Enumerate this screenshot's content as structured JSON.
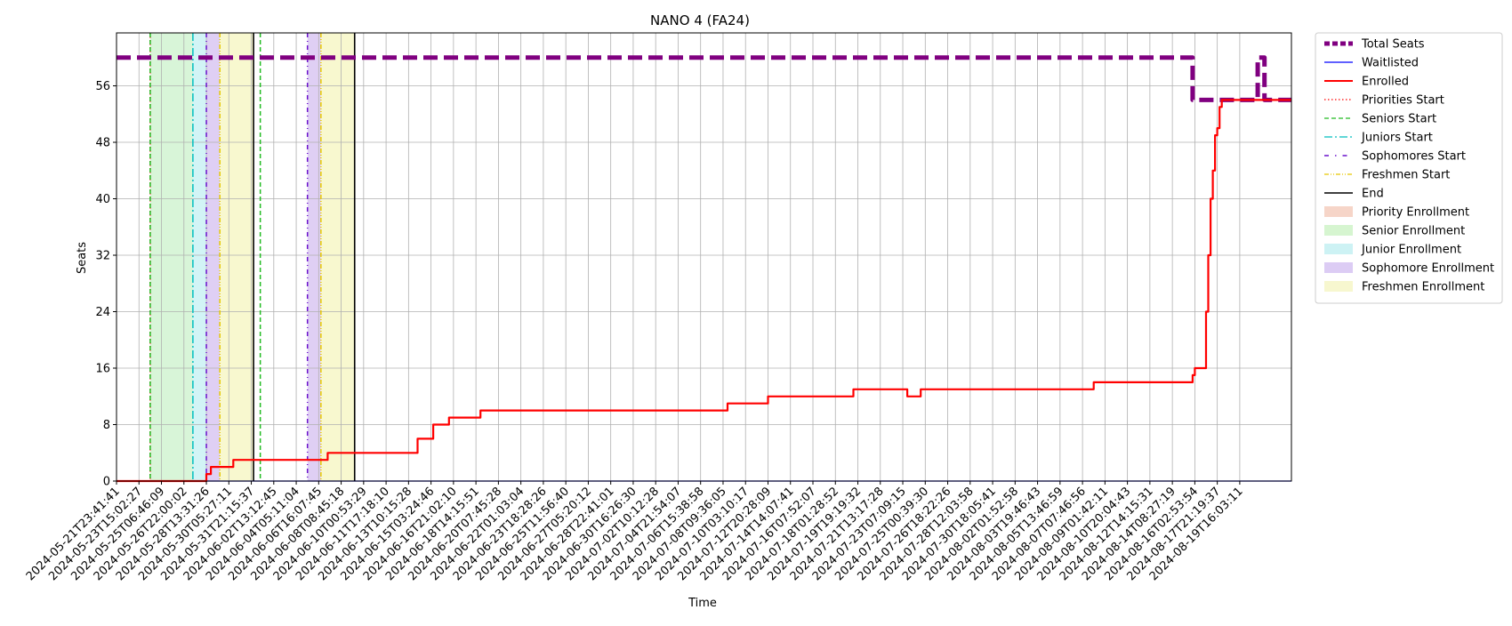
{
  "chart_data": {
    "type": "line",
    "title": "NANO 4 (FA24)",
    "xlabel": "Time",
    "ylabel": "Seats",
    "xlim": [
      0,
      52.3
    ],
    "ylim": [
      0,
      63.5
    ],
    "grid": true,
    "legend_position": "outside-top-right",
    "x_tick_labels": [
      "2024-05-21T23:41:41",
      "2024-05-23T15:02:27",
      "2024-05-25T06:46:09",
      "2024-05-26T22:00:02",
      "2024-05-28T13:31:26",
      "2024-05-30T05:27:11",
      "2024-05-31T21:15:37",
      "2024-06-02T13:12:45",
      "2024-06-04T05:11:04",
      "2024-06-06T16:07:45",
      "2024-06-08T08:45:18",
      "2024-06-10T00:53:29",
      "2024-06-11T17:18:10",
      "2024-06-13T10:15:28",
      "2024-06-15T03:24:46",
      "2024-06-16T21:02:10",
      "2024-06-18T14:15:51",
      "2024-06-20T07:45:28",
      "2024-06-22T01:03:04",
      "2024-06-23T18:28:26",
      "2024-06-25T11:56:40",
      "2024-06-27T05:20:12",
      "2024-06-28T22:41:01",
      "2024-06-30T16:26:30",
      "2024-07-02T10:12:28",
      "2024-07-04T21:54:07",
      "2024-07-06T15:38:58",
      "2024-07-08T09:36:05",
      "2024-07-10T03:10:17",
      "2024-07-12T20:28:09",
      "2024-07-14T14:07:41",
      "2024-07-16T07:52:07",
      "2024-07-18T01:28:52",
      "2024-07-19T19:19:32",
      "2024-07-21T13:17:28",
      "2024-07-23T07:09:15",
      "2024-07-25T00:39:30",
      "2024-07-26T18:22:26",
      "2024-07-28T12:03:58",
      "2024-07-30T18:05:41",
      "2024-08-02T01:52:58",
      "2024-08-03T19:46:43",
      "2024-08-05T13:46:59",
      "2024-08-07T07:46:56",
      "2024-08-09T01:42:11",
      "2024-08-10T20:04:43",
      "2024-08-12T14:15:31",
      "2024-08-14T08:27:19",
      "2024-08-16T02:53:54",
      "2024-08-17T21:19:37",
      "2024-08-19T16:03:11"
    ],
    "y_ticks": [
      0,
      8,
      16,
      24,
      32,
      40,
      48,
      56
    ],
    "shaded_periods": [
      {
        "name": "Senior Enrollment",
        "color": "#8ee28e",
        "alpha": 0.35,
        "x": [
          1.5,
          3.4
        ]
      },
      {
        "name": "Junior Enrollment",
        "color": "#7fe0e6",
        "alpha": 0.35,
        "x": [
          3.4,
          4.0
        ]
      },
      {
        "name": "Sophomore Enrollment",
        "color": "#b995e6",
        "alpha": 0.45,
        "x": [
          4.0,
          4.6
        ]
      },
      {
        "name": "Freshmen Enrollment",
        "color": "#f2f2a8",
        "alpha": 0.55,
        "x": [
          4.6,
          6.1
        ]
      },
      {
        "name": "Sophomore Enrollment",
        "color": "#b995e6",
        "alpha": 0.45,
        "x": [
          8.5,
          9.1
        ]
      },
      {
        "name": "Freshmen Enrollment",
        "color": "#f2f2a8",
        "alpha": 0.55,
        "x": [
          9.1,
          10.6
        ]
      }
    ],
    "vertical_markers": [
      {
        "name": "Priorities Start",
        "x": 1.5,
        "color": "#ff0000",
        "dash": "1.5,2.5"
      },
      {
        "name": "Seniors Start",
        "x": 1.5,
        "color": "#22bb22",
        "dash": "5,3"
      },
      {
        "name": "Seniors Start",
        "x": 6.4,
        "color": "#22bb22",
        "dash": "5,3"
      },
      {
        "name": "Juniors Start",
        "x": 3.4,
        "color": "#00bfbf",
        "dash": "9,3,2,3"
      },
      {
        "name": "Sophomores Start",
        "x": 4.0,
        "color": "#6a11cb",
        "dash": "5,4,1,4"
      },
      {
        "name": "Sophomores Start",
        "x": 8.5,
        "color": "#6a11cb",
        "dash": "5,4,1,4"
      },
      {
        "name": "Freshmen Start",
        "x": 4.6,
        "color": "#e6c800",
        "dash": "5,2,1,2,1,2"
      },
      {
        "name": "Freshmen Start",
        "x": 9.1,
        "color": "#e6c800",
        "dash": "5,2,1,2,1,2"
      },
      {
        "name": "End",
        "x": 6.1,
        "color": "#000000",
        "dash": ""
      },
      {
        "name": "End",
        "x": 10.6,
        "color": "#000000",
        "dash": ""
      }
    ],
    "series": [
      {
        "name": "Total Seats",
        "color": "#800080",
        "style": "dashed-thick",
        "x": [
          0,
          47.9,
          47.9,
          50.8,
          50.8,
          51.1,
          51.1,
          52.3
        ],
        "y": [
          60,
          60,
          54,
          54,
          60,
          60,
          54,
          54
        ]
      },
      {
        "name": "Waitlisted",
        "color": "#0000ff",
        "style": "solid",
        "x": [
          0,
          52.3
        ],
        "y": [
          0,
          0
        ]
      },
      {
        "name": "Enrolled",
        "color": "#ff0000",
        "style": "step",
        "x": [
          0,
          3.1,
          4.0,
          4.1,
          4.2,
          5.2,
          9.4,
          13.4,
          14.1,
          14.8,
          16.2,
          27.2,
          29.0,
          32.8,
          35.2,
          35.8,
          43.5,
          47.9,
          48.0,
          48.4,
          48.5,
          48.6,
          48.7,
          48.8,
          48.9,
          49.0,
          49.1,
          49.2,
          52.3
        ],
        "y": [
          0,
          0,
          1,
          1,
          2,
          3,
          4,
          6,
          8,
          9,
          10,
          11,
          12,
          13,
          12,
          13,
          14,
          15,
          16,
          16,
          24,
          32,
          40,
          44,
          49,
          50,
          53,
          54,
          54
        ]
      }
    ]
  },
  "legend": {
    "items": [
      {
        "label": "Total Seats",
        "kind": "line",
        "color": "#800080",
        "dash": "6,3",
        "width": 5
      },
      {
        "label": "Waitlisted",
        "kind": "line",
        "color": "#0000ff",
        "dash": "",
        "width": 1.3
      },
      {
        "label": "Enrolled",
        "kind": "line",
        "color": "#ff0000",
        "dash": "",
        "width": 2
      },
      {
        "label": "Priorities Start",
        "kind": "line",
        "color": "#ff0000",
        "dash": "1.5,2.5",
        "width": 1.3
      },
      {
        "label": "Seniors Start",
        "kind": "line",
        "color": "#22bb22",
        "dash": "5,3",
        "width": 1.3
      },
      {
        "label": "Juniors Start",
        "kind": "line",
        "color": "#00bfbf",
        "dash": "9,3,2,3",
        "width": 1.3
      },
      {
        "label": "Sophomores Start",
        "kind": "line",
        "color": "#6a11cb",
        "dash": "5,7,1.5,7",
        "width": 1.6
      },
      {
        "label": "Freshmen Start",
        "kind": "line",
        "color": "#e6c800",
        "dash": "5,2,1,2,1,2",
        "width": 1.3
      },
      {
        "label": "End",
        "kind": "line",
        "color": "#000000",
        "dash": "",
        "width": 1.5
      },
      {
        "label": "Priority Enrollment",
        "kind": "patch",
        "color": "#f6d5c8"
      },
      {
        "label": "Senior Enrollment",
        "kind": "patch",
        "color": "#d6f5d0"
      },
      {
        "label": "Junior Enrollment",
        "kind": "patch",
        "color": "#cdf2f4"
      },
      {
        "label": "Sophomore Enrollment",
        "kind": "patch",
        "color": "#dcccf4"
      },
      {
        "label": "Freshmen Enrollment",
        "kind": "patch",
        "color": "#f7f7cf"
      }
    ]
  }
}
